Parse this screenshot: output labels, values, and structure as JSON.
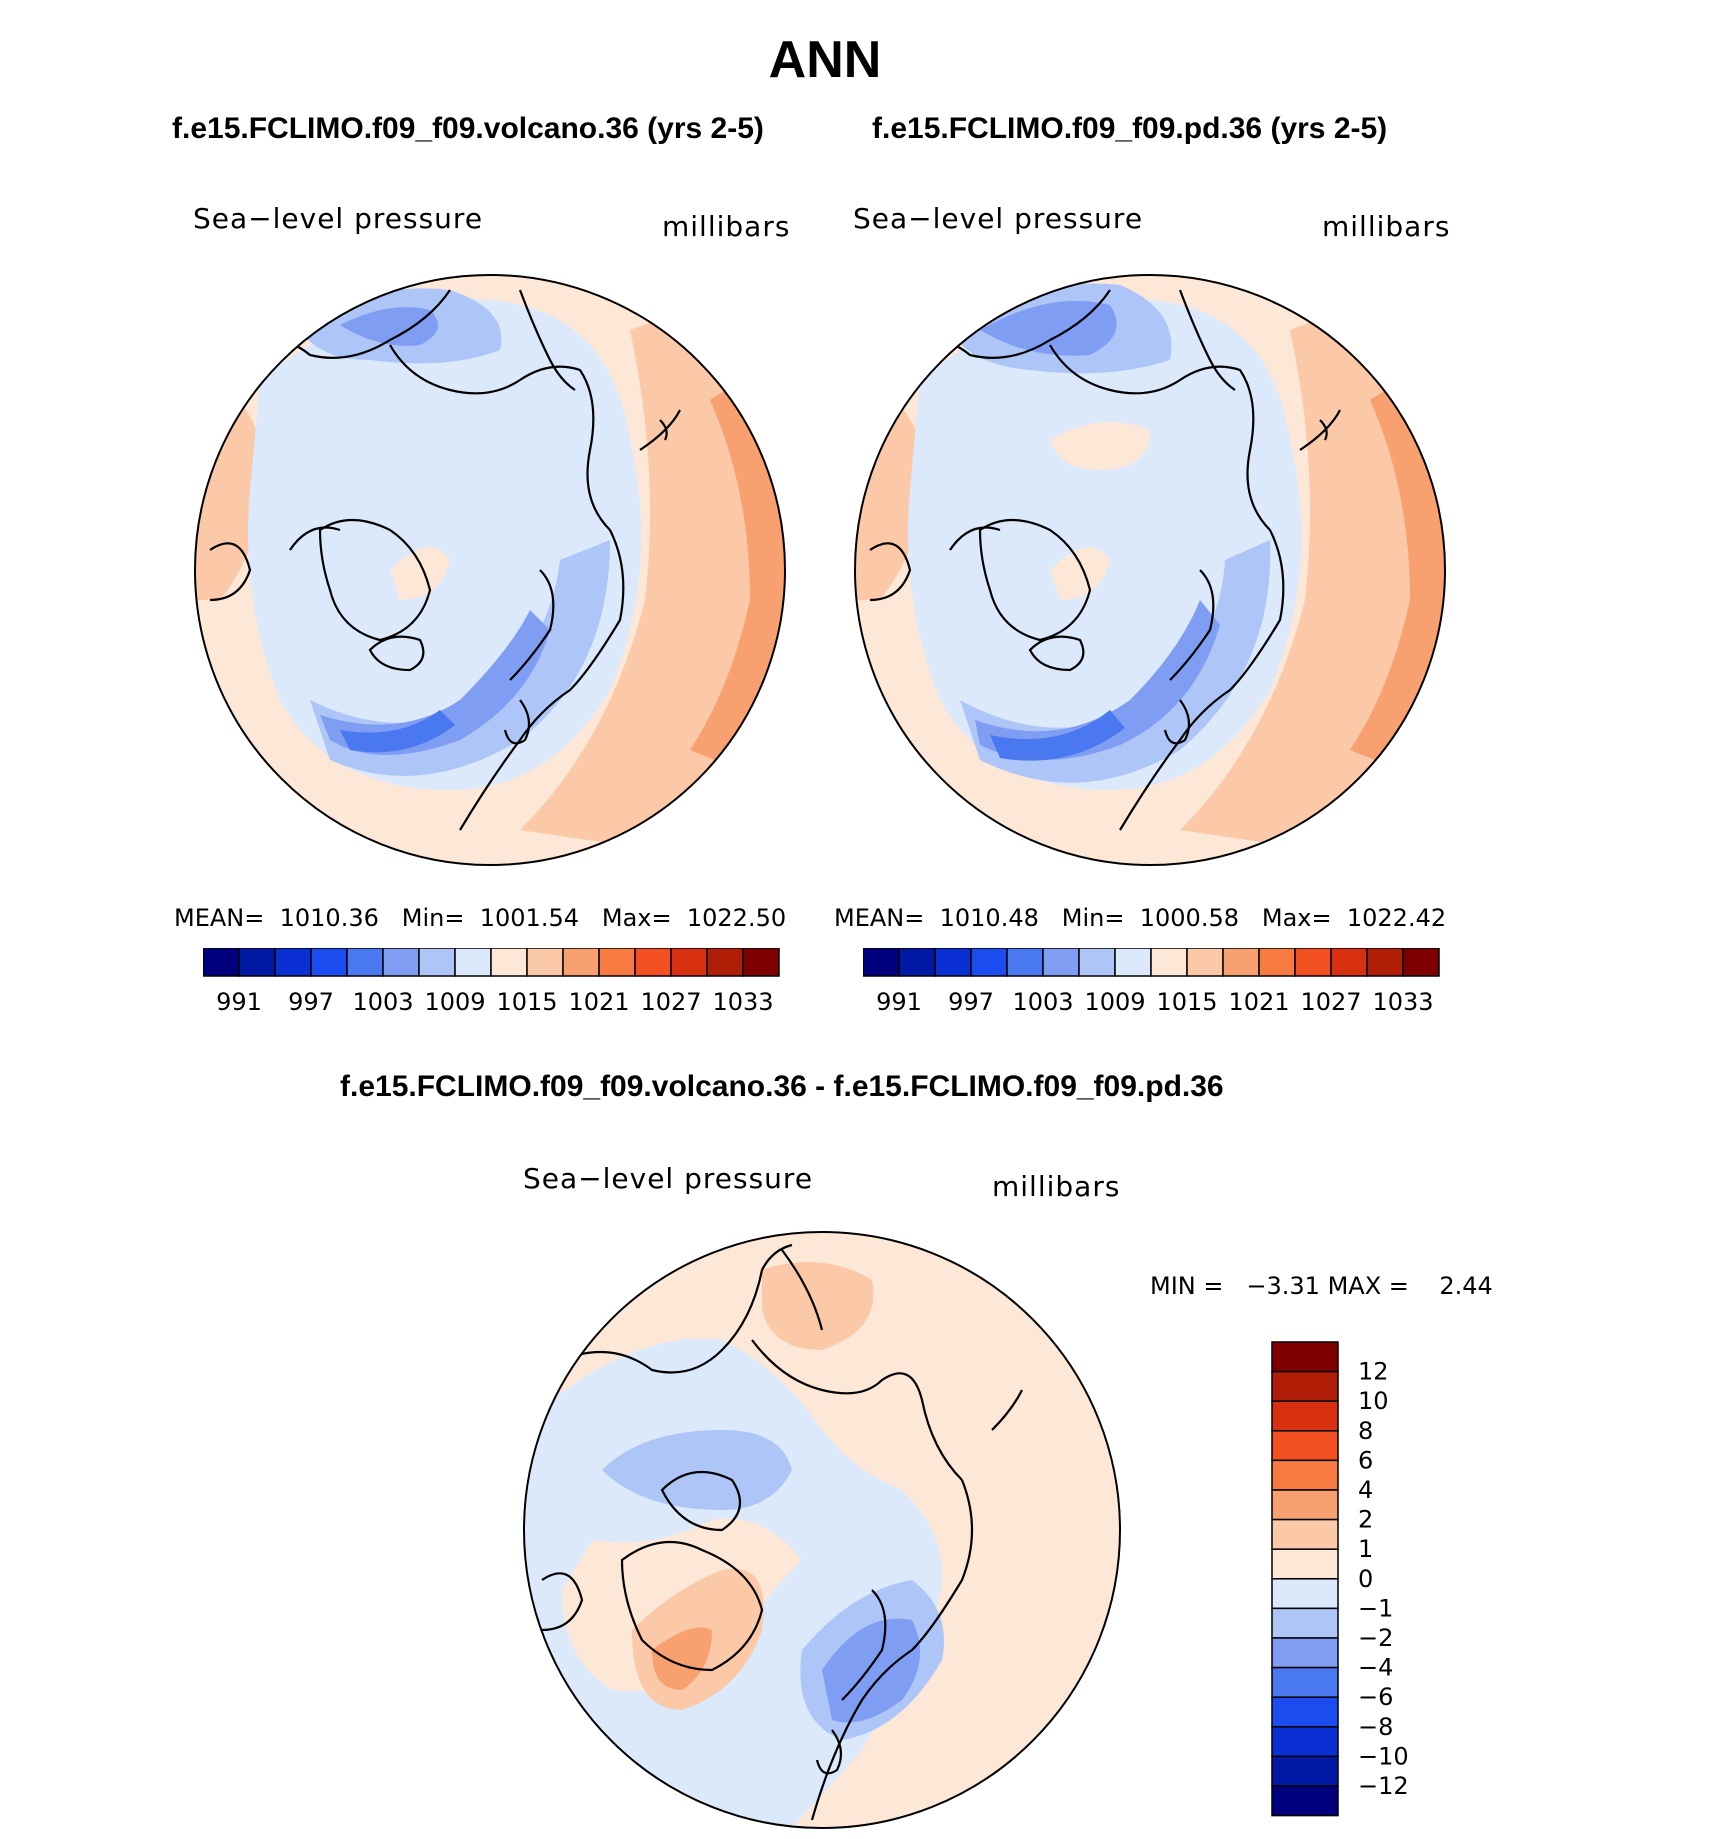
{
  "title": "ANN",
  "panels": [
    {
      "case_title": "f.e15.FCLIMO.f09_f09.volcano.36 (yrs 2-5)",
      "variable": "Sea−level pressure",
      "units": "millibars",
      "mean_label": "MEAN=",
      "mean": "1010.36",
      "min_label": "Min=",
      "min": "1001.54",
      "max_label": "Max=",
      "max": "1022.50"
    },
    {
      "case_title": "f.e15.FCLIMO.f09_f09.pd.36 (yrs 2-5)",
      "variable": "Sea−level pressure",
      "units": "millibars",
      "mean_label": "MEAN=",
      "mean": "1010.48",
      "min_label": "Min=",
      "min": "1000.58",
      "max_label": "Max=",
      "max": "1022.42"
    }
  ],
  "colorbar": {
    "colors": [
      "#00007f",
      "#001aa5",
      "#0a30d4",
      "#1a4cf0",
      "#4a78f0",
      "#7f9df2",
      "#aec6f7",
      "#dbe9fb",
      "#fde8d8",
      "#fbc8a8",
      "#f8a070",
      "#f77a40",
      "#f25020",
      "#d83010",
      "#b01e08",
      "#7f0000"
    ],
    "ticks": [
      "991",
      "997",
      "1003",
      "1009",
      "1015",
      "1021",
      "1027",
      "1033"
    ]
  },
  "diff": {
    "title": "f.e15.FCLIMO.f09_f09.volcano.36 - f.e15.FCLIMO.f09_f09.pd.36",
    "variable": "Sea−level pressure",
    "units": "millibars",
    "min_label": "MIN =",
    "min": "−3.31",
    "max_label": "MAX =",
    "max": "2.44",
    "colorbar": {
      "colors": [
        "#7f0000",
        "#b01e08",
        "#d83010",
        "#f25020",
        "#f77a40",
        "#f8a070",
        "#fbc8a8",
        "#fde8d8",
        "#dbe9fb",
        "#aec6f7",
        "#7f9df2",
        "#4a78f0",
        "#1a4cf0",
        "#0a30d4",
        "#001aa5",
        "#00007f"
      ],
      "ticks": [
        "12",
        "10",
        "8",
        "6",
        "4",
        "2",
        "1",
        "0",
        "−1",
        "−2",
        "−4",
        "−6",
        "−8",
        "−10",
        "−12"
      ]
    }
  }
}
